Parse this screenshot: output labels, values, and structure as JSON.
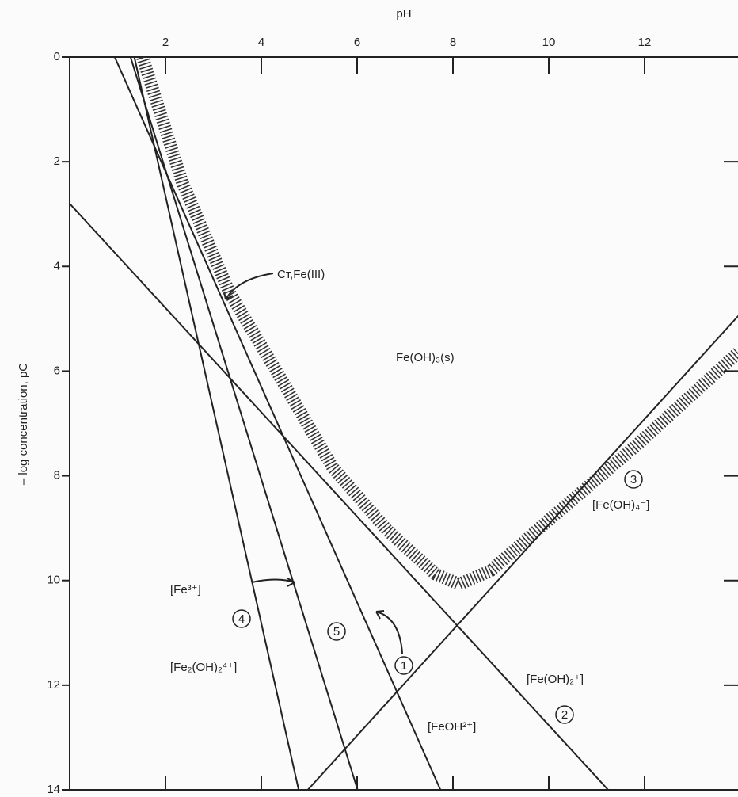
{
  "chart_data": {
    "type": "line",
    "xlabel": "pH",
    "ylabel": "– log concentration, pC",
    "xlim": [
      0,
      14
    ],
    "ylim": [
      0,
      14
    ],
    "y_inverted": true,
    "xticks": [
      2,
      4,
      6,
      8,
      10,
      12
    ],
    "yticks": [
      0,
      2,
      4,
      6,
      8,
      10,
      12,
      14
    ],
    "series": [
      {
        "name": "1",
        "color": "#222",
        "x": [
          0.94,
          7.74
        ],
        "values": [
          0,
          14
        ]
      },
      {
        "name": "2",
        "color": "#222",
        "x": [
          0,
          11.24
        ],
        "values": [
          2.8,
          14
        ]
      },
      {
        "name": "3",
        "color": "#222",
        "x": [
          4.97,
          14
        ],
        "values": [
          14,
          4.9
        ]
      },
      {
        "name": "4",
        "color": "#222",
        "x": [
          1.35,
          4.78
        ],
        "values": [
          0,
          14
        ]
      },
      {
        "name": "5",
        "color": "#222",
        "x": [
          1.27,
          6.01
        ],
        "values": [
          0,
          14
        ]
      }
    ],
    "total": {
      "color": "#333",
      "x": [
        1.52,
        2.35,
        3.34,
        4.33,
        5.49,
        6.64,
        7.64,
        8.13,
        8.79,
        10.12,
        11.78,
        13.95
      ],
      "values": [
        0,
        2.39,
        4.51,
        6.02,
        7.84,
        9.05,
        9.88,
        10.07,
        9.81,
        8.75,
        7.46,
        5.65
      ]
    },
    "annotations": [
      "Cт,Fe(III)",
      "Fe(OH)₃(s)",
      "[Fe³⁺]",
      "[Fe₂(OH)₂⁴⁺]",
      "[FeOH²⁺]",
      "[Fe(OH)₂⁺]",
      "[Fe(OH)₄⁻]"
    ]
  }
}
